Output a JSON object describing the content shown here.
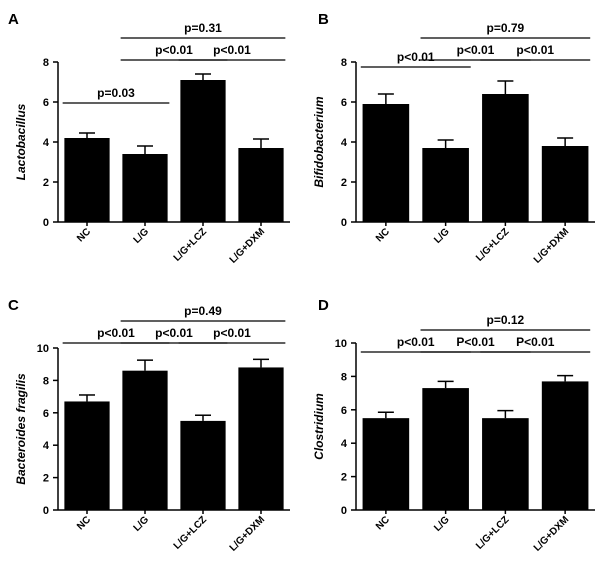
{
  "chart_data": [
    {
      "panel": "A",
      "type": "bar",
      "ylabel": "Lactobacillus",
      "categories": [
        "NC",
        "L/G",
        "L/G+LCZ",
        "L/G+DXM"
      ],
      "values": [
        4.2,
        3.4,
        7.1,
        3.7
      ],
      "errors": [
        0.25,
        0.4,
        0.3,
        0.45
      ],
      "ylim": [
        0,
        8
      ],
      "yticks": [
        "0",
        "2",
        "4",
        "6",
        "8"
      ],
      "comparisons": [
        {
          "from": 0,
          "to": 1,
          "label": "p=0.03"
        },
        {
          "from": 1,
          "to": 2,
          "label": "p<0.01"
        },
        {
          "from": 2,
          "to": 3,
          "label": "p<0.01"
        },
        {
          "from": 1,
          "to": 3,
          "label": "p=0.31"
        }
      ]
    },
    {
      "panel": "B",
      "type": "bar",
      "ylabel": "Bifidobacterium",
      "categories": [
        "NC",
        "L/G",
        "L/G+LCZ",
        "L/G+DXM"
      ],
      "values": [
        5.9,
        3.7,
        6.4,
        3.8
      ],
      "errors": [
        0.5,
        0.4,
        0.65,
        0.4
      ],
      "ylim": [
        0,
        8
      ],
      "yticks": [
        "0",
        "2",
        "4",
        "6",
        "8"
      ],
      "comparisons": [
        {
          "from": 0,
          "to": 1,
          "label": "p<0.01"
        },
        {
          "from": 1,
          "to": 2,
          "label": "p<0.01"
        },
        {
          "from": 2,
          "to": 3,
          "label": "p<0.01"
        },
        {
          "from": 1,
          "to": 3,
          "label": "p=0.79"
        }
      ]
    },
    {
      "panel": "C",
      "type": "bar",
      "ylabel": "Bacteroides fragilis",
      "categories": [
        "NC",
        "L/G",
        "L/G+LCZ",
        "L/G+DXM"
      ],
      "values": [
        6.7,
        8.6,
        5.5,
        8.8
      ],
      "errors": [
        0.4,
        0.65,
        0.35,
        0.5
      ],
      "ylim": [
        0,
        10
      ],
      "yticks": [
        "0",
        "2",
        "4",
        "6",
        "8",
        "10"
      ],
      "comparisons": [
        {
          "from": 0,
          "to": 1,
          "label": "p<0.01"
        },
        {
          "from": 1,
          "to": 2,
          "label": "p<0.01"
        },
        {
          "from": 2,
          "to": 3,
          "label": "p<0.01"
        },
        {
          "from": 1,
          "to": 3,
          "label": "p=0.49"
        }
      ]
    },
    {
      "panel": "D",
      "type": "bar",
      "ylabel": "Clostridium",
      "categories": [
        "NC",
        "L/G",
        "L/G+LCZ",
        "L/G+DXM"
      ],
      "values": [
        5.5,
        7.3,
        5.5,
        7.7
      ],
      "errors": [
        0.35,
        0.4,
        0.45,
        0.35
      ],
      "ylim": [
        0,
        10
      ],
      "yticks": [
        "0",
        "2",
        "4",
        "6",
        "8",
        "10"
      ],
      "comparisons": [
        {
          "from": 0,
          "to": 1,
          "label": "p<0.01"
        },
        {
          "from": 1,
          "to": 2,
          "label": "P<0.01"
        },
        {
          "from": 2,
          "to": 3,
          "label": "P<0.01"
        },
        {
          "from": 1,
          "to": 3,
          "label": "p=0.12"
        }
      ]
    }
  ]
}
